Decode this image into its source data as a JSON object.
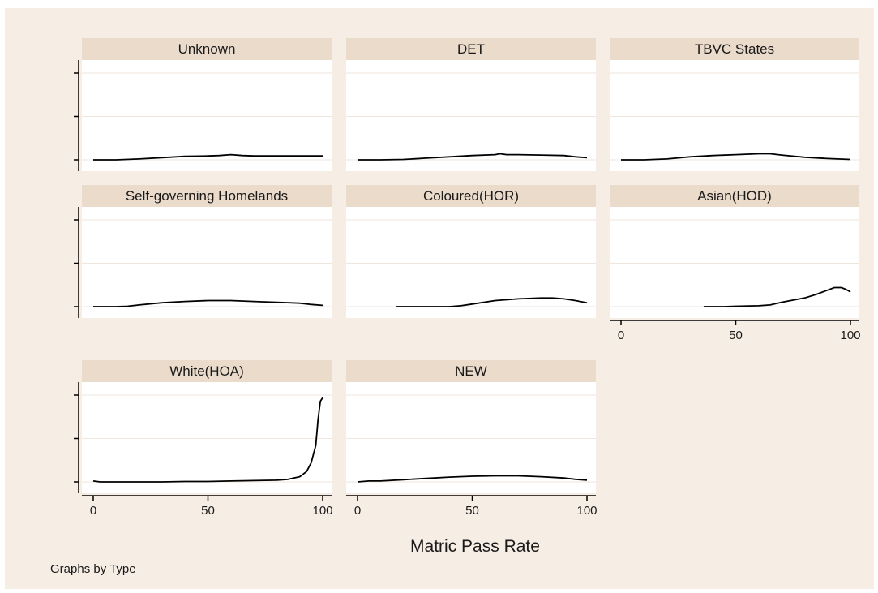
{
  "figure": {
    "note": "Graphs by Type"
  },
  "chart_data": {
    "type": "line",
    "xlabel": "Matric Pass Rate",
    "ylabel": "",
    "xlim": [
      0,
      100
    ],
    "ylim": [
      0,
      1
    ],
    "x_ticks": [
      0,
      50,
      100
    ],
    "grid": true,
    "colors": {
      "line": "#000000",
      "panel_bg": "#ffffff",
      "title_bg": "#eadbcb",
      "figure_bg": "#f6ede4",
      "grid": "#efe6dc"
    },
    "panels": [
      {
        "title": "Unknown",
        "show_x_axis": false,
        "x": [
          0,
          10,
          20,
          30,
          40,
          50,
          55,
          60,
          65,
          70,
          80,
          90,
          100
        ],
        "y": [
          0.0,
          0.0,
          0.01,
          0.025,
          0.04,
          0.045,
          0.05,
          0.06,
          0.05,
          0.045,
          0.045,
          0.045,
          0.045
        ]
      },
      {
        "title": "DET",
        "show_x_axis": false,
        "x": [
          0,
          10,
          20,
          30,
          40,
          50,
          60,
          62,
          65,
          70,
          80,
          90,
          95,
          100
        ],
        "y": [
          0.0,
          0.0,
          0.005,
          0.02,
          0.035,
          0.05,
          0.06,
          0.07,
          0.06,
          0.06,
          0.055,
          0.05,
          0.035,
          0.025
        ]
      },
      {
        "title": "TBVC States",
        "show_x_axis": false,
        "x": [
          0,
          10,
          20,
          30,
          40,
          50,
          60,
          65,
          70,
          80,
          90,
          100
        ],
        "y": [
          0.0,
          0.0,
          0.01,
          0.035,
          0.05,
          0.06,
          0.07,
          0.07,
          0.055,
          0.03,
          0.015,
          0.005
        ]
      },
      {
        "title": "Self-governing Homelands",
        "show_x_axis": false,
        "x": [
          0,
          10,
          15,
          20,
          30,
          40,
          50,
          60,
          70,
          80,
          90,
          95,
          100
        ],
        "y": [
          0.0,
          0.0,
          0.005,
          0.02,
          0.045,
          0.06,
          0.07,
          0.07,
          0.06,
          0.05,
          0.04,
          0.025,
          0.015
        ]
      },
      {
        "title": "Coloured(HOR)",
        "show_x_axis": false,
        "x": [
          17,
          30,
          40,
          45,
          50,
          60,
          70,
          80,
          85,
          90,
          95,
          100
        ],
        "y": [
          0.0,
          0.0,
          0.0,
          0.01,
          0.03,
          0.07,
          0.09,
          0.1,
          0.1,
          0.09,
          0.07,
          0.045
        ]
      },
      {
        "title": "Asian(HOD)",
        "show_x_axis": true,
        "x": [
          36,
          45,
          50,
          60,
          65,
          70,
          80,
          85,
          90,
          93,
          96,
          98,
          100
        ],
        "y": [
          0.0,
          0.0,
          0.005,
          0.01,
          0.02,
          0.05,
          0.1,
          0.14,
          0.19,
          0.22,
          0.22,
          0.2,
          0.17
        ]
      },
      {
        "title": "White(HOA)",
        "show_x_axis": true,
        "x": [
          0,
          3,
          10,
          20,
          30,
          40,
          50,
          60,
          70,
          80,
          85,
          90,
          93,
          95,
          97,
          98,
          99,
          100
        ],
        "y": [
          0.01,
          0.0,
          0.0,
          0.0,
          0.0,
          0.005,
          0.005,
          0.01,
          0.015,
          0.02,
          0.03,
          0.06,
          0.12,
          0.22,
          0.42,
          0.72,
          0.93,
          0.97
        ]
      },
      {
        "title": "NEW",
        "show_x_axis": true,
        "x": [
          0,
          5,
          10,
          20,
          30,
          40,
          50,
          60,
          70,
          80,
          90,
          95,
          100
        ],
        "y": [
          0.0,
          0.01,
          0.01,
          0.025,
          0.04,
          0.055,
          0.065,
          0.07,
          0.07,
          0.06,
          0.045,
          0.03,
          0.02
        ]
      }
    ]
  }
}
